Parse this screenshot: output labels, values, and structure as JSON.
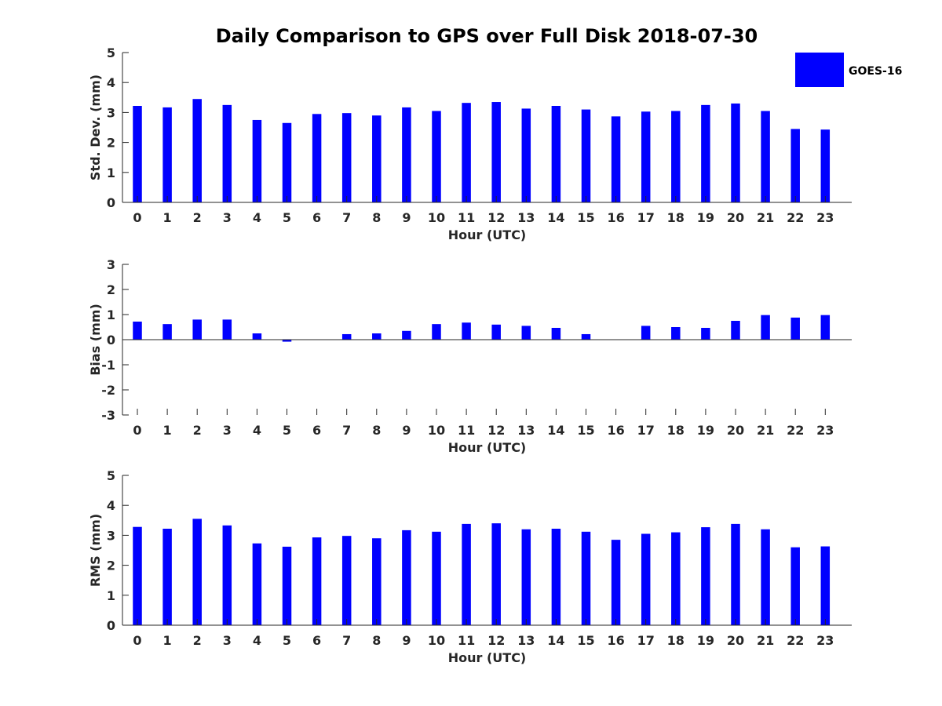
{
  "title": "Daily Comparison to GPS over Full Disk 2018-07-30",
  "colors": {
    "bar": "#0000ff",
    "axis": "#262626"
  },
  "legend": {
    "label": "GOES-16",
    "position": "top-right"
  },
  "chart_data": [
    {
      "type": "bar",
      "name": "std-dev",
      "series": [
        {
          "name": "GOES-16",
          "values": [
            3.22,
            3.17,
            3.45,
            3.25,
            2.75,
            2.65,
            2.95,
            2.98,
            2.9,
            3.17,
            3.05,
            3.32,
            3.35,
            3.13,
            3.22,
            3.1,
            2.87,
            3.03,
            3.05,
            3.25,
            3.3,
            3.05,
            2.45,
            2.43
          ]
        }
      ],
      "categories": [
        "0",
        "1",
        "2",
        "3",
        "4",
        "5",
        "6",
        "7",
        "8",
        "9",
        "10",
        "11",
        "12",
        "13",
        "14",
        "15",
        "16",
        "17",
        "18",
        "19",
        "20",
        "21",
        "22",
        "23"
      ],
      "xlabel": "Hour (UTC)",
      "ylabel": "Std. Dev. (mm)",
      "ylim": [
        0,
        5
      ],
      "yticks": [
        "0",
        "1",
        "2",
        "3",
        "4",
        "5"
      ]
    },
    {
      "type": "bar",
      "name": "bias",
      "series": [
        {
          "name": "GOES-16",
          "values": [
            0.72,
            0.62,
            0.8,
            0.8,
            0.25,
            -0.08,
            0.0,
            0.22,
            0.25,
            0.35,
            0.62,
            0.68,
            0.6,
            0.55,
            0.47,
            0.22,
            0.0,
            0.55,
            0.5,
            0.47,
            0.75,
            0.98,
            0.88,
            0.98
          ]
        }
      ],
      "categories": [
        "0",
        "1",
        "2",
        "3",
        "4",
        "5",
        "6",
        "7",
        "8",
        "9",
        "10",
        "11",
        "12",
        "13",
        "14",
        "15",
        "16",
        "17",
        "18",
        "19",
        "20",
        "21",
        "22",
        "23"
      ],
      "xlabel": "Hour (UTC)",
      "ylabel": "Bias (mm)",
      "ylim": [
        -3,
        3
      ],
      "yticks": [
        "-3",
        "-2",
        "-1",
        "0",
        "1",
        "2",
        "3"
      ]
    },
    {
      "type": "bar",
      "name": "rms",
      "series": [
        {
          "name": "GOES-16",
          "values": [
            3.28,
            3.22,
            3.55,
            3.33,
            2.73,
            2.62,
            2.93,
            2.98,
            2.9,
            3.17,
            3.12,
            3.38,
            3.4,
            3.2,
            3.22,
            3.12,
            2.85,
            3.05,
            3.1,
            3.27,
            3.38,
            3.2,
            2.6,
            2.63
          ]
        }
      ],
      "categories": [
        "0",
        "1",
        "2",
        "3",
        "4",
        "5",
        "6",
        "7",
        "8",
        "9",
        "10",
        "11",
        "12",
        "13",
        "14",
        "15",
        "16",
        "17",
        "18",
        "19",
        "20",
        "21",
        "22",
        "23"
      ],
      "xlabel": "Hour (UTC)",
      "ylabel": "RMS (mm)",
      "ylim": [
        0,
        5
      ],
      "yticks": [
        "0",
        "1",
        "2",
        "3",
        "4",
        "5"
      ]
    }
  ]
}
